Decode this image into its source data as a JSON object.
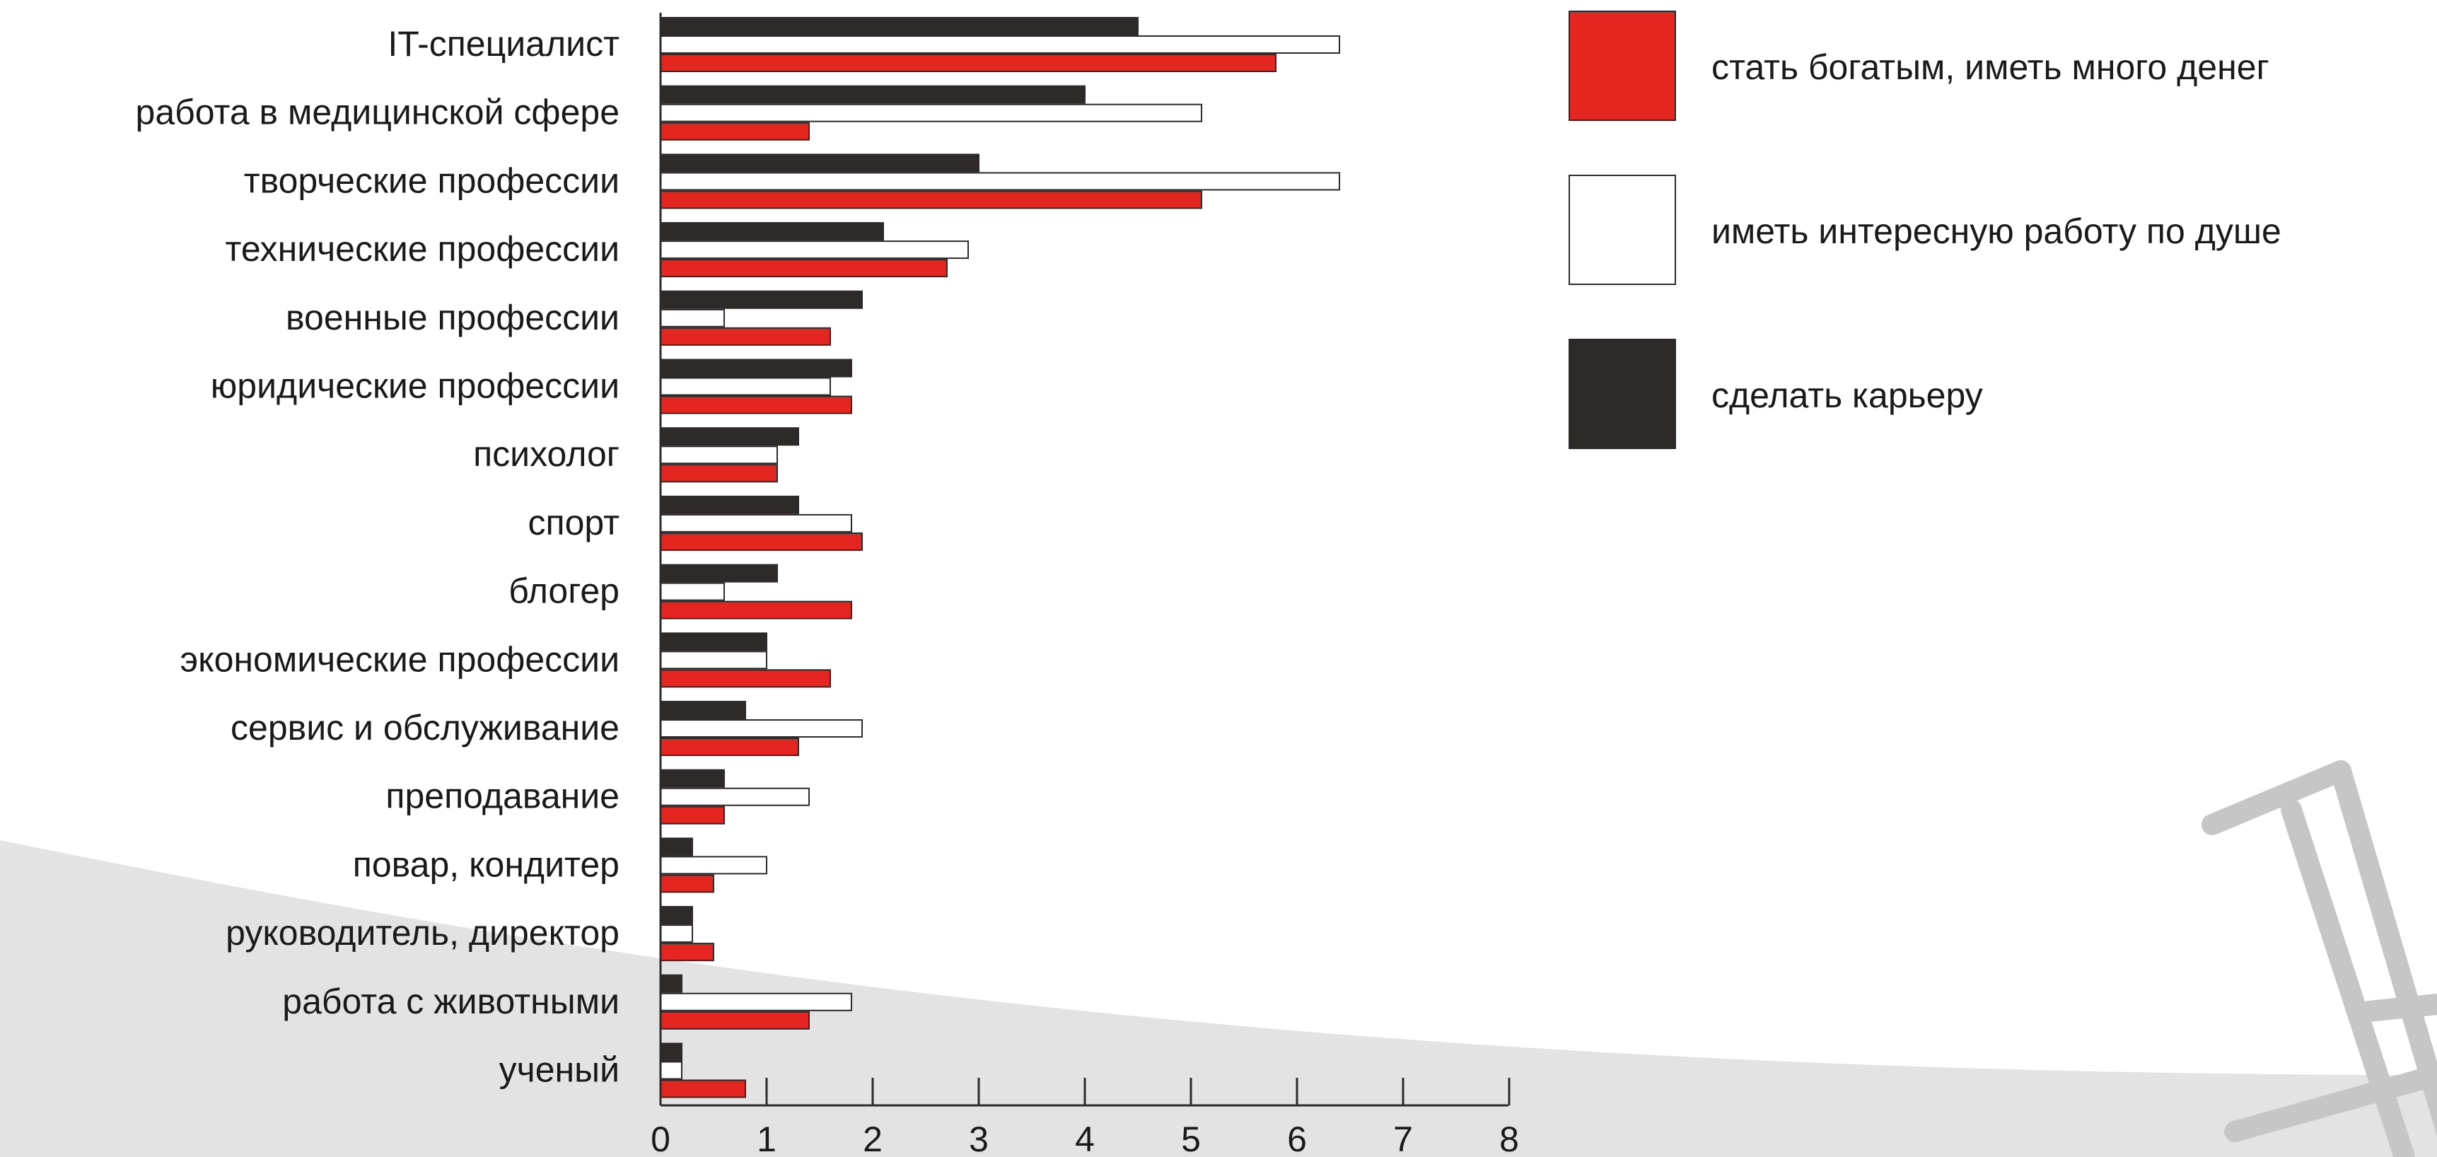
{
  "colors": {
    "accent_red": "#e52620",
    "dark": "#2e2a29",
    "white_fill": "#ffffff",
    "outline": "#2e2a29",
    "background_wave": "#e3e3e3",
    "decor_gray": "#c6c6c6"
  },
  "chart_data": {
    "type": "bar",
    "orientation": "horizontal",
    "title": "",
    "xlabel": "",
    "ylabel": "",
    "xlim": [
      0,
      8
    ],
    "xticks": [
      "0",
      "1",
      "2",
      "3",
      "4",
      "5",
      "6",
      "7",
      "8"
    ],
    "grid": false,
    "legend_position": "top-right",
    "categories": [
      "IT-специалист",
      "работа в медицинской сфере",
      "творческие профессии",
      "технические профессии",
      "военные профессии",
      "юридические профессии",
      "психолог",
      "спорт",
      "блогер",
      "экономические профессии",
      "сервис и обслуживание",
      "преподавание",
      "повар, кондитер",
      "руководитель, директор",
      "работа с животными",
      "ученый"
    ],
    "series": [
      {
        "name": "сделать карьеру",
        "color": "#2e2a29",
        "values": [
          4.5,
          4.0,
          3.0,
          2.1,
          1.9,
          1.8,
          1.3,
          1.3,
          1.1,
          1.0,
          0.8,
          0.6,
          0.3,
          0.3,
          0.2,
          0.2
        ]
      },
      {
        "name": "иметь интересную работу по душе",
        "color": "#ffffff",
        "values": [
          6.4,
          5.1,
          6.4,
          2.9,
          0.6,
          1.6,
          1.1,
          1.8,
          0.6,
          1.0,
          1.9,
          1.4,
          1.0,
          0.3,
          1.8,
          0.2
        ]
      },
      {
        "name": "стать богатым, иметь много денег",
        "color": "#e52620",
        "values": [
          5.8,
          1.4,
          5.1,
          2.7,
          1.6,
          1.8,
          1.1,
          1.9,
          1.8,
          1.6,
          1.3,
          0.6,
          0.5,
          0.5,
          1.4,
          0.8
        ]
      }
    ],
    "legend": [
      {
        "label": "стать богатым, иметь много денег",
        "color": "#e52620"
      },
      {
        "label": "иметь интересную работу по душе",
        "color": "#ffffff"
      },
      {
        "label": "сделать карьеру",
        "color": "#2e2a29"
      }
    ]
  }
}
